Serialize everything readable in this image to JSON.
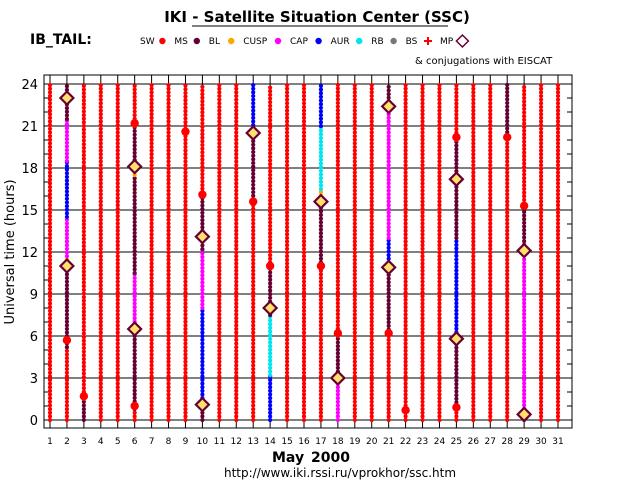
{
  "chart_data": {
    "type": "scatter",
    "title": "IKI - Satellite Situation Center (SSC)",
    "subtitle": "IB_TAIL:",
    "ylabel": "Universal time (hours)",
    "xlabel_month": "May",
    "xlabel_year": "2000",
    "footer": "http://www.iki.rssi.ru/vprokhor/ssc.htm",
    "conj_note": "& conjugations with EISCAT",
    "ylim": [
      0,
      24
    ],
    "yticks": [
      0,
      3,
      6,
      9,
      12,
      15,
      18,
      21,
      24
    ],
    "xticks": [
      1,
      2,
      3,
      4,
      5,
      6,
      7,
      8,
      9,
      10,
      11,
      12,
      13,
      14,
      15,
      16,
      17,
      18,
      19,
      20,
      21,
      22,
      23,
      24,
      25,
      26,
      27,
      28,
      29,
      30,
      31
    ],
    "legend": [
      {
        "name": "SW",
        "color": "#ff0000",
        "marker": "dot"
      },
      {
        "name": "MS",
        "color": "#660033",
        "marker": "dot"
      },
      {
        "name": "BL",
        "color": "#ffa500",
        "marker": "dot"
      },
      {
        "name": "CUSP",
        "color": "#ff00ff",
        "marker": "dot"
      },
      {
        "name": "CAP",
        "color": "#0000ff",
        "marker": "dot"
      },
      {
        "name": "AUR",
        "color": "#00e5ee",
        "marker": "dot"
      },
      {
        "name": "RB",
        "color": "#777777",
        "marker": "dot"
      },
      {
        "name": "BS",
        "color": "#ff0000",
        "marker": "cross"
      },
      {
        "name": "MP",
        "color": "#660033",
        "marker": "diamond"
      }
    ],
    "tracks": [
      {
        "day": 1,
        "segments": [
          [
            0,
            24,
            "SW"
          ]
        ]
      },
      {
        "day": 2,
        "segments": [
          [
            0,
            5.2,
            "SW"
          ],
          [
            5.2,
            11.2,
            "MS"
          ],
          [
            11.2,
            11.7,
            "BL"
          ],
          [
            11.7,
            14.5,
            "CUSP"
          ],
          [
            14.5,
            18.5,
            "CAP"
          ],
          [
            18.5,
            21.5,
            "CUSP"
          ],
          [
            21.5,
            24,
            "MS"
          ]
        ]
      },
      {
        "day": 3,
        "segments": [
          [
            0,
            1.5,
            "MS"
          ],
          [
            1.5,
            24,
            "SW"
          ]
        ]
      },
      {
        "day": 4,
        "segments": [
          [
            0,
            24,
            "SW"
          ]
        ]
      },
      {
        "day": 5,
        "segments": [
          [
            0,
            24,
            "SW"
          ]
        ]
      },
      {
        "day": 6,
        "segments": [
          [
            0,
            0.8,
            "SW"
          ],
          [
            0.8,
            6.5,
            "MS"
          ],
          [
            6.5,
            10.5,
            "CUSP"
          ],
          [
            10.5,
            17.5,
            "MS"
          ],
          [
            17.5,
            18.3,
            "BL"
          ],
          [
            18.3,
            21,
            "MS"
          ],
          [
            21,
            24,
            "SW"
          ]
        ]
      },
      {
        "day": 7,
        "segments": [
          [
            0,
            24,
            "SW"
          ]
        ]
      },
      {
        "day": 8,
        "segments": [
          [
            0,
            24,
            "SW"
          ]
        ]
      },
      {
        "day": 9,
        "segments": [
          [
            0,
            20.5,
            "SW"
          ],
          [
            20.5,
            24,
            "SW"
          ]
        ]
      },
      {
        "day": 10,
        "segments": [
          [
            0,
            1.3,
            "MS"
          ],
          [
            1.3,
            8,
            "CAP"
          ],
          [
            8,
            12.2,
            "CUSP"
          ],
          [
            12.2,
            13.5,
            "MS"
          ],
          [
            13.5,
            16,
            "MS"
          ],
          [
            16,
            24,
            "SW"
          ]
        ]
      },
      {
        "day": 11,
        "segments": [
          [
            0,
            24,
            "SW"
          ]
        ]
      },
      {
        "day": 12,
        "segments": [
          [
            0,
            24,
            "SW"
          ]
        ]
      },
      {
        "day": 13,
        "segments": [
          [
            0,
            15.5,
            "SW"
          ],
          [
            15.5,
            20.3,
            "MS"
          ],
          [
            20.3,
            20.8,
            "BL"
          ],
          [
            20.8,
            24,
            "CAP"
          ]
        ]
      },
      {
        "day": 14,
        "segments": [
          [
            0,
            3.2,
            "CAP"
          ],
          [
            3.2,
            7.5,
            "AUR"
          ],
          [
            7.5,
            8.2,
            "MS"
          ],
          [
            8.2,
            11,
            "MS"
          ],
          [
            11,
            24,
            "SW"
          ]
        ]
      },
      {
        "day": 15,
        "segments": [
          [
            0,
            24,
            "SW"
          ]
        ]
      },
      {
        "day": 16,
        "segments": [
          [
            0,
            24,
            "SW"
          ]
        ]
      },
      {
        "day": 17,
        "segments": [
          [
            0,
            11,
            "SW"
          ],
          [
            11,
            15.5,
            "MS"
          ],
          [
            15.5,
            16.5,
            "BL"
          ],
          [
            16.5,
            21,
            "AUR"
          ],
          [
            21,
            24,
            "CAP"
          ]
        ]
      },
      {
        "day": 18,
        "segments": [
          [
            0,
            3.2,
            "CUSP"
          ],
          [
            3.2,
            6,
            "MS"
          ],
          [
            6,
            24,
            "SW"
          ]
        ]
      },
      {
        "day": 19,
        "segments": [
          [
            0,
            24,
            "SW"
          ]
        ]
      },
      {
        "day": 20,
        "segments": [
          [
            0,
            24,
            "SW"
          ]
        ]
      },
      {
        "day": 21,
        "segments": [
          [
            0,
            6.2,
            "SW"
          ],
          [
            6.2,
            11,
            "MS"
          ],
          [
            11,
            13,
            "CAP"
          ],
          [
            13,
            22.5,
            "CUSP"
          ],
          [
            22.5,
            24,
            "MS"
          ]
        ]
      },
      {
        "day": 22,
        "segments": [
          [
            0,
            24,
            "SW"
          ]
        ]
      },
      {
        "day": 23,
        "segments": [
          [
            0,
            24,
            "SW"
          ]
        ]
      },
      {
        "day": 24,
        "segments": [
          [
            0,
            24,
            "SW"
          ]
        ]
      },
      {
        "day": 25,
        "segments": [
          [
            0,
            1,
            "SW"
          ],
          [
            1,
            6,
            "MS"
          ],
          [
            6,
            13,
            "CAP"
          ],
          [
            13,
            17,
            "MS"
          ],
          [
            17,
            20,
            "MS"
          ],
          [
            20,
            24,
            "SW"
          ]
        ]
      },
      {
        "day": 26,
        "segments": [
          [
            0,
            24,
            "SW"
          ]
        ]
      },
      {
        "day": 27,
        "segments": [
          [
            0,
            24,
            "SW"
          ]
        ]
      },
      {
        "day": 28,
        "segments": [
          [
            0,
            20.3,
            "SW"
          ],
          [
            20.3,
            24,
            "MS"
          ]
        ]
      },
      {
        "day": 29,
        "segments": [
          [
            0,
            0.8,
            "MS"
          ],
          [
            0.8,
            12,
            "CUSP"
          ],
          [
            12,
            15.2,
            "MS"
          ],
          [
            15.2,
            24,
            "SW"
          ]
        ]
      },
      {
        "day": 30,
        "segments": [
          [
            0,
            24,
            "SW"
          ]
        ]
      },
      {
        "day": 31,
        "segments": [
          [
            0,
            24,
            "SW"
          ]
        ]
      }
    ],
    "bow_shock_crossings": [
      {
        "day": 2,
        "hour": 5.7
      },
      {
        "day": 3,
        "hour": 1.7
      },
      {
        "day": 6,
        "hour": 1.0
      },
      {
        "day": 6,
        "hour": 21.2
      },
      {
        "day": 9,
        "hour": 20.6
      },
      {
        "day": 10,
        "hour": 16.1
      },
      {
        "day": 13,
        "hour": 15.6
      },
      {
        "day": 14,
        "hour": 11.0
      },
      {
        "day": 17,
        "hour": 11.0
      },
      {
        "day": 18,
        "hour": 6.2
      },
      {
        "day": 21,
        "hour": 6.2
      },
      {
        "day": 22,
        "hour": 0.7
      },
      {
        "day": 25,
        "hour": 0.9
      },
      {
        "day": 25,
        "hour": 20.2
      },
      {
        "day": 28,
        "hour": 20.2
      },
      {
        "day": 29,
        "hour": 15.3
      }
    ],
    "magnetopause_crossings": [
      {
        "day": 2,
        "hour": 23.0
      },
      {
        "day": 2,
        "hour": 11.0
      },
      {
        "day": 6,
        "hour": 18.1
      },
      {
        "day": 6,
        "hour": 6.5
      },
      {
        "day": 10,
        "hour": 13.1
      },
      {
        "day": 10,
        "hour": 1.1
      },
      {
        "day": 13,
        "hour": 20.5
      },
      {
        "day": 14,
        "hour": 8.0
      },
      {
        "day": 17,
        "hour": 15.6
      },
      {
        "day": 18,
        "hour": 3.0
      },
      {
        "day": 21,
        "hour": 22.4
      },
      {
        "day": 21,
        "hour": 10.9
      },
      {
        "day": 25,
        "hour": 17.2
      },
      {
        "day": 25,
        "hour": 5.8
      },
      {
        "day": 29,
        "hour": 12.1
      },
      {
        "day": 29,
        "hour": 0.4
      }
    ]
  }
}
